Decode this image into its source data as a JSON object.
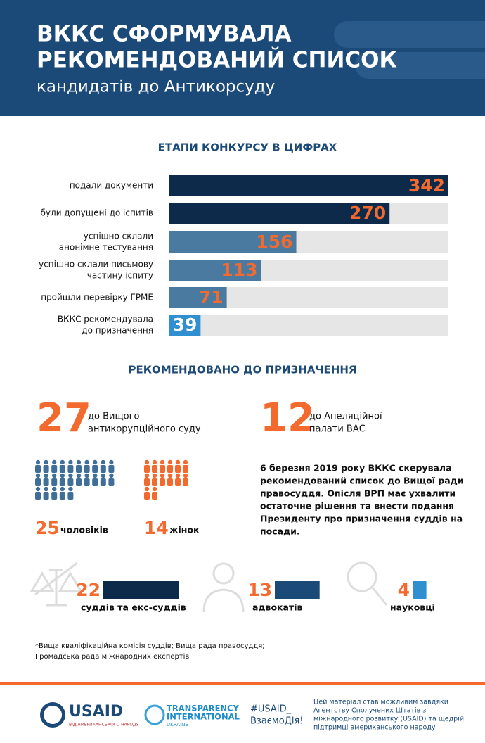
{
  "header": {
    "title_lines": [
      "ВККС СФОРМУВАЛА",
      "РЕКОМЕНДОВАНИЙ СПИСОК"
    ],
    "subtitle": "кандидатів до Антикорсуду"
  },
  "stages": {
    "title": "ЕТАПИ КОНКУРСУ В ЦИФРАХ",
    "items": [
      {
        "label_lines": [
          "подали документи"
        ],
        "value": 342,
        "color": "#0d2a4a",
        "value_color": "#f26a2e"
      },
      {
        "label_lines": [
          "були допущені до іспитів"
        ],
        "value": 270,
        "color": "#0d2a4a",
        "value_color": "#f26a2e"
      },
      {
        "label_lines": [
          "успішно склали",
          "анонімне тестування"
        ],
        "value": 156,
        "color": "#4a7aa0",
        "value_color": "#f26a2e"
      },
      {
        "label_lines": [
          "успішно склали письмову",
          "частину іспиту"
        ],
        "value": 113,
        "color": "#4a7aa0",
        "value_color": "#f26a2e"
      },
      {
        "label_lines": [
          "пройшли перевірку ГРМЕ"
        ],
        "value": 71,
        "color": "#4a7aa0",
        "value_color": "#f26a2e"
      },
      {
        "label_lines": [
          "ВККС рекомендувала",
          "до призначення"
        ],
        "value": 39,
        "color": "#2f8fd0",
        "value_color": "#ffffff"
      }
    ]
  },
  "recommended": {
    "title": "РЕКОМЕНДОВАНО ДО ПРИЗНАЧЕННЯ",
    "courts": [
      {
        "value": 27,
        "label_lines": [
          "до Вищого",
          "антикорупційного суду"
        ]
      },
      {
        "value": 12,
        "label_lines": [
          "до Апеляційної",
          "палати ВАС"
        ]
      }
    ],
    "gender": [
      {
        "value": 25,
        "label": "чоловіків",
        "color": "#3f6e98"
      },
      {
        "value": 14,
        "label": "жінок",
        "color": "#f26a2e"
      }
    ],
    "note_lines": [
      "6 березня 2019 року ВККС скерувала",
      "рекомендований список до Вищої ради",
      "правосуддя. Опісля ВРП має ухвалити",
      "остаточне рішення та внести подання",
      "Президенту про призначення суддів на",
      "посади."
    ]
  },
  "professions": [
    {
      "value": 22,
      "label": "суддів та екс-суддів",
      "color": "#0d2a4a"
    },
    {
      "value": 13,
      "label": "адвокатів",
      "color": "#1c4a78"
    },
    {
      "value": 4,
      "label": "науковці",
      "color": "#2f8fd0"
    }
  ],
  "footnote_lines": [
    "*Вища кваліфікаційна комісія суддів; Вища рада правосуддя;",
    "Громадська рада міжнародних експертів"
  ],
  "footer": {
    "usaid": "USAID",
    "usaid_sub": "ВІД АМЕРИКАНСЬКОГО НАРОДУ",
    "ti_lines": [
      "TRANSPARENCY",
      "INTERNATIONAL"
    ],
    "ti_sub": "UKRAINE",
    "hashtag_lines": [
      "#USAID_",
      "ВзаємоДія!"
    ],
    "disclaimer_lines": [
      "Цей матеріал став можливим завдяки",
      "Агентству Сполучених Штатів з",
      "міжнародного розвитку (USAID) та щедрій",
      "підтримці американського народу"
    ]
  }
}
